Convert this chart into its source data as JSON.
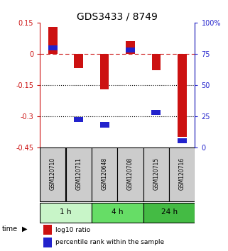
{
  "title": "GDS3433 / 8749",
  "samples": [
    "GSM120710",
    "GSM120711",
    "GSM120648",
    "GSM120708",
    "GSM120715",
    "GSM120716"
  ],
  "log10_ratio": [
    0.13,
    -0.07,
    -0.17,
    0.06,
    -0.08,
    -0.4
  ],
  "percentile_rank": [
    80,
    22,
    18,
    78,
    28,
    5
  ],
  "ylim_left": [
    -0.45,
    0.15
  ],
  "ylim_right": [
    0,
    100
  ],
  "yticks_left": [
    0.15,
    0,
    -0.15,
    -0.3,
    -0.45
  ],
  "yticks_right": [
    100,
    75,
    50,
    25,
    0
  ],
  "hlines_black": [
    -0.15,
    -0.3
  ],
  "hline_red": 0,
  "bar_color": "#cc1111",
  "square_color": "#2222cc",
  "bar_width": 0.35,
  "time_groups": [
    {
      "label": "1 h",
      "cols": [
        0,
        1
      ],
      "color": "#c8f5c8"
    },
    {
      "label": "4 h",
      "cols": [
        2,
        3
      ],
      "color": "#66dd66"
    },
    {
      "label": "24 h",
      "cols": [
        4,
        5
      ],
      "color": "#44bb44"
    }
  ],
  "legend_red_label": "log10 ratio",
  "legend_blue_label": "percentile rank within the sample",
  "title_fontsize": 10,
  "tick_fontsize": 7,
  "sample_fontsize": 5.5
}
